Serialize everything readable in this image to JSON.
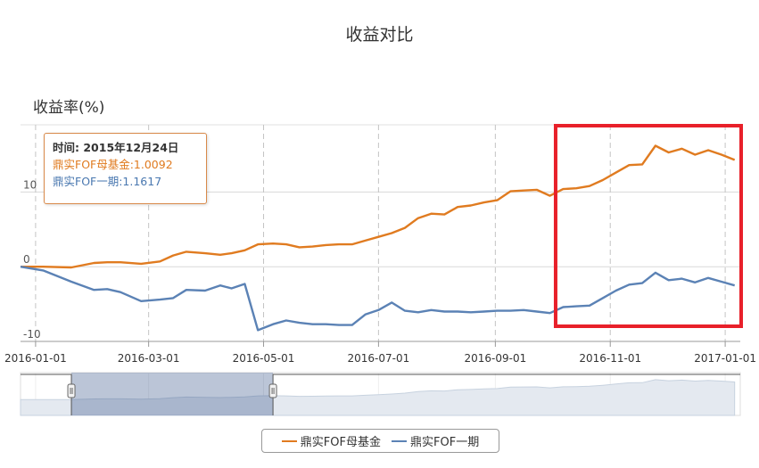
{
  "chart_data": {
    "type": "line",
    "title": "收益对比",
    "ylabel": "收益率(%)",
    "ylim": [
      -10,
      19
    ],
    "y_ticks": [
      "10",
      "0",
      "-10"
    ],
    "x_ticks": [
      "2016-01-01",
      "2016-03-01",
      "2016-05-01",
      "2016-07-01",
      "2016-09-01",
      "2016-11-01",
      "2017-01-01"
    ],
    "grid": true,
    "legend_position": "bottom",
    "colors": {
      "series1": "#e07b20",
      "series2": "#5b82b5",
      "highlight": "#e8202a"
    },
    "series": [
      {
        "name": "鼎实FOF母基金",
        "x": [
          "2015-12-24",
          "2016-01-05",
          "2016-01-20",
          "2016-02-01",
          "2016-02-08",
          "2016-02-15",
          "2016-02-26",
          "2016-03-07",
          "2016-03-14",
          "2016-03-21",
          "2016-03-31",
          "2016-04-08",
          "2016-04-14",
          "2016-04-21",
          "2016-04-28",
          "2016-05-06",
          "2016-05-13",
          "2016-05-20",
          "2016-05-27",
          "2016-06-03",
          "2016-06-10",
          "2016-06-17",
          "2016-06-24",
          "2016-07-01",
          "2016-07-08",
          "2016-07-15",
          "2016-07-22",
          "2016-07-29",
          "2016-08-05",
          "2016-08-12",
          "2016-08-19",
          "2016-08-26",
          "2016-09-02",
          "2016-09-09",
          "2016-09-16",
          "2016-09-23",
          "2016-09-30",
          "2016-10-07",
          "2016-10-14",
          "2016-10-21",
          "2016-10-28",
          "2016-11-04",
          "2016-11-11",
          "2016-11-18",
          "2016-11-25",
          "2016-12-02",
          "2016-12-09",
          "2016-12-16",
          "2016-12-23",
          "2016-12-30",
          "2017-01-06"
        ],
        "values": [
          0.0,
          0.0,
          -0.1,
          0.5,
          0.6,
          0.6,
          0.4,
          0.7,
          1.5,
          2.0,
          1.8,
          1.6,
          1.8,
          2.2,
          3.0,
          3.1,
          3.0,
          2.6,
          2.7,
          2.9,
          3.0,
          3.0,
          3.5,
          4.0,
          4.5,
          5.2,
          6.5,
          7.1,
          7.0,
          8.0,
          8.2,
          8.6,
          8.9,
          10.1,
          10.2,
          10.3,
          9.5,
          10.4,
          10.5,
          10.8,
          11.6,
          12.6,
          13.6,
          13.7,
          16.2,
          15.3,
          15.8,
          15.0,
          15.6,
          15.0,
          14.3
        ]
      },
      {
        "name": "鼎实FOF一期",
        "x": [
          "2015-12-24",
          "2016-01-05",
          "2016-01-20",
          "2016-02-01",
          "2016-02-08",
          "2016-02-15",
          "2016-02-26",
          "2016-03-07",
          "2016-03-14",
          "2016-03-21",
          "2016-03-31",
          "2016-04-08",
          "2016-04-14",
          "2016-04-21",
          "2016-04-28",
          "2016-05-06",
          "2016-05-13",
          "2016-05-20",
          "2016-05-27",
          "2016-06-03",
          "2016-06-10",
          "2016-06-17",
          "2016-06-24",
          "2016-07-01",
          "2016-07-08",
          "2016-07-15",
          "2016-07-22",
          "2016-07-29",
          "2016-08-05",
          "2016-08-12",
          "2016-08-19",
          "2016-08-26",
          "2016-09-02",
          "2016-09-09",
          "2016-09-16",
          "2016-09-23",
          "2016-09-30",
          "2016-10-07",
          "2016-10-14",
          "2016-10-21",
          "2016-10-28",
          "2016-11-04",
          "2016-11-11",
          "2016-11-18",
          "2016-11-25",
          "2016-12-02",
          "2016-12-09",
          "2016-12-16",
          "2016-12-23",
          "2016-12-30",
          "2017-01-06"
        ],
        "values": [
          0.0,
          -0.5,
          -2.0,
          -3.1,
          -3.0,
          -3.4,
          -4.6,
          -4.4,
          -4.2,
          -3.1,
          -3.2,
          -2.5,
          -2.9,
          -2.3,
          -8.5,
          -7.7,
          -7.2,
          -7.5,
          -7.7,
          -7.7,
          -7.8,
          -7.8,
          -6.4,
          -5.8,
          -4.8,
          -5.9,
          -6.1,
          -5.8,
          -6.0,
          -6.0,
          -6.1,
          -6.0,
          -5.9,
          -5.9,
          -5.8,
          -6.0,
          -6.2,
          -5.4,
          -5.3,
          -5.2,
          -4.2,
          -3.2,
          -2.4,
          -2.2,
          -0.8,
          -1.8,
          -1.6,
          -2.1,
          -1.5,
          -2.0,
          -2.5
        ]
      }
    ]
  },
  "tooltip": {
    "time": "时间: 2015年12月24日",
    "s1": "鼎实FOF母基金:1.0092",
    "s2": "鼎实FOF一期:1.1617"
  },
  "navigator": {
    "range_start": "2016-01-20",
    "range_end": "2016-05-06"
  }
}
